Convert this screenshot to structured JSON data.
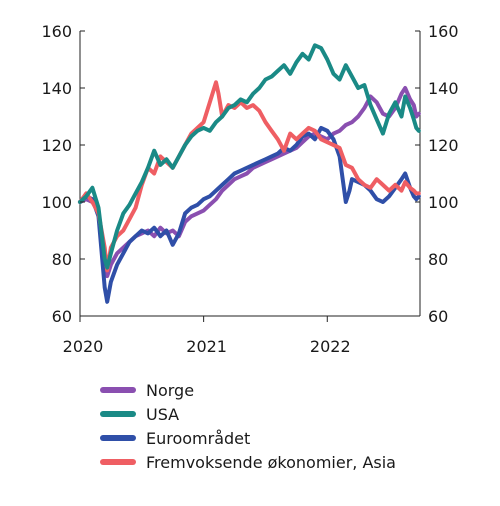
{
  "chart_data": {
    "type": "line",
    "title": "",
    "xlabel": "",
    "ylabel": "",
    "xlim": [
      2020.0,
      2022.75
    ],
    "ylim": [
      60,
      160
    ],
    "y_ticks": [
      60,
      80,
      100,
      120,
      140,
      160
    ],
    "y_tick_labels": [
      "60",
      "80",
      "100",
      "120",
      "140",
      "160"
    ],
    "x_ticks": [
      2020,
      2021,
      2022
    ],
    "x_tick_labels": [
      "2020",
      "2021",
      "2022"
    ],
    "grid": false,
    "legend_position": "bottom",
    "series": [
      {
        "name": "Norge",
        "color": "#8a4fb0",
        "points": [
          [
            2020.0,
            100
          ],
          [
            2020.05,
            101
          ],
          [
            2020.1,
            100
          ],
          [
            2020.15,
            97
          ],
          [
            2020.2,
            78
          ],
          [
            2020.22,
            74
          ],
          [
            2020.25,
            78
          ],
          [
            2020.3,
            82
          ],
          [
            2020.35,
            84
          ],
          [
            2020.4,
            86
          ],
          [
            2020.45,
            88
          ],
          [
            2020.5,
            89
          ],
          [
            2020.55,
            90
          ],
          [
            2020.6,
            88
          ],
          [
            2020.65,
            91
          ],
          [
            2020.7,
            89
          ],
          [
            2020.75,
            90
          ],
          [
            2020.8,
            88
          ],
          [
            2020.85,
            93
          ],
          [
            2020.9,
            95
          ],
          [
            2020.95,
            96
          ],
          [
            2021.0,
            97
          ],
          [
            2021.05,
            99
          ],
          [
            2021.1,
            101
          ],
          [
            2021.15,
            104
          ],
          [
            2021.2,
            106
          ],
          [
            2021.25,
            108
          ],
          [
            2021.3,
            109
          ],
          [
            2021.35,
            110
          ],
          [
            2021.4,
            112
          ],
          [
            2021.45,
            113
          ],
          [
            2021.5,
            114
          ],
          [
            2021.55,
            115
          ],
          [
            2021.6,
            116
          ],
          [
            2021.65,
            117
          ],
          [
            2021.7,
            118
          ],
          [
            2021.75,
            119
          ],
          [
            2021.8,
            121
          ],
          [
            2021.85,
            123
          ],
          [
            2021.9,
            124
          ],
          [
            2021.95,
            123
          ],
          [
            2022.0,
            122
          ],
          [
            2022.05,
            124
          ],
          [
            2022.1,
            125
          ],
          [
            2022.15,
            127
          ],
          [
            2022.2,
            128
          ],
          [
            2022.25,
            130
          ],
          [
            2022.3,
            133
          ],
          [
            2022.35,
            137
          ],
          [
            2022.4,
            135
          ],
          [
            2022.45,
            131
          ],
          [
            2022.5,
            130
          ],
          [
            2022.55,
            133
          ],
          [
            2022.6,
            138
          ],
          [
            2022.63,
            140
          ],
          [
            2022.67,
            136
          ],
          [
            2022.7,
            134
          ],
          [
            2022.72,
            130
          ],
          [
            2022.74,
            131
          ]
        ]
      },
      {
        "name": "USA",
        "color": "#1a8a86",
        "points": [
          [
            2020.0,
            100
          ],
          [
            2020.05,
            102
          ],
          [
            2020.1,
            105
          ],
          [
            2020.15,
            98
          ],
          [
            2020.2,
            80
          ],
          [
            2020.22,
            77
          ],
          [
            2020.25,
            82
          ],
          [
            2020.3,
            90
          ],
          [
            2020.35,
            96
          ],
          [
            2020.4,
            99
          ],
          [
            2020.45,
            103
          ],
          [
            2020.5,
            107
          ],
          [
            2020.55,
            112
          ],
          [
            2020.6,
            118
          ],
          [
            2020.65,
            113
          ],
          [
            2020.7,
            115
          ],
          [
            2020.75,
            112
          ],
          [
            2020.8,
            116
          ],
          [
            2020.85,
            120
          ],
          [
            2020.9,
            123
          ],
          [
            2020.95,
            125
          ],
          [
            2021.0,
            126
          ],
          [
            2021.05,
            125
          ],
          [
            2021.1,
            128
          ],
          [
            2021.15,
            130
          ],
          [
            2021.2,
            133
          ],
          [
            2021.25,
            134
          ],
          [
            2021.3,
            136
          ],
          [
            2021.35,
            135
          ],
          [
            2021.4,
            138
          ],
          [
            2021.45,
            140
          ],
          [
            2021.5,
            143
          ],
          [
            2021.55,
            144
          ],
          [
            2021.6,
            146
          ],
          [
            2021.65,
            148
          ],
          [
            2021.7,
            145
          ],
          [
            2021.75,
            149
          ],
          [
            2021.8,
            152
          ],
          [
            2021.85,
            150
          ],
          [
            2021.9,
            155
          ],
          [
            2021.95,
            154
          ],
          [
            2022.0,
            150
          ],
          [
            2022.05,
            145
          ],
          [
            2022.1,
            143
          ],
          [
            2022.15,
            148
          ],
          [
            2022.2,
            144
          ],
          [
            2022.25,
            140
          ],
          [
            2022.3,
            141
          ],
          [
            2022.35,
            134
          ],
          [
            2022.4,
            129
          ],
          [
            2022.45,
            124
          ],
          [
            2022.5,
            131
          ],
          [
            2022.55,
            135
          ],
          [
            2022.6,
            130
          ],
          [
            2022.63,
            137
          ],
          [
            2022.67,
            133
          ],
          [
            2022.7,
            129
          ],
          [
            2022.72,
            126
          ],
          [
            2022.74,
            125
          ]
        ]
      },
      {
        "name": "Euroområdet",
        "color": "#2f4fa8",
        "points": [
          [
            2020.0,
            100
          ],
          [
            2020.05,
            102
          ],
          [
            2020.1,
            101
          ],
          [
            2020.15,
            95
          ],
          [
            2020.2,
            70
          ],
          [
            2020.22,
            65
          ],
          [
            2020.25,
            72
          ],
          [
            2020.3,
            78
          ],
          [
            2020.35,
            82
          ],
          [
            2020.4,
            86
          ],
          [
            2020.45,
            88
          ],
          [
            2020.5,
            90
          ],
          [
            2020.55,
            89
          ],
          [
            2020.6,
            91
          ],
          [
            2020.65,
            88
          ],
          [
            2020.7,
            90
          ],
          [
            2020.75,
            85
          ],
          [
            2020.8,
            89
          ],
          [
            2020.85,
            96
          ],
          [
            2020.9,
            98
          ],
          [
            2020.95,
            99
          ],
          [
            2021.0,
            101
          ],
          [
            2021.05,
            102
          ],
          [
            2021.1,
            104
          ],
          [
            2021.15,
            106
          ],
          [
            2021.2,
            108
          ],
          [
            2021.25,
            110
          ],
          [
            2021.3,
            111
          ],
          [
            2021.35,
            112
          ],
          [
            2021.4,
            113
          ],
          [
            2021.45,
            114
          ],
          [
            2021.5,
            115
          ],
          [
            2021.55,
            116
          ],
          [
            2021.6,
            117
          ],
          [
            2021.65,
            119
          ],
          [
            2021.7,
            118
          ],
          [
            2021.75,
            120
          ],
          [
            2021.8,
            123
          ],
          [
            2021.85,
            124
          ],
          [
            2021.9,
            122
          ],
          [
            2021.95,
            126
          ],
          [
            2022.0,
            125
          ],
          [
            2022.05,
            122
          ],
          [
            2022.1,
            116
          ],
          [
            2022.15,
            100
          ],
          [
            2022.18,
            104
          ],
          [
            2022.2,
            108
          ],
          [
            2022.25,
            107
          ],
          [
            2022.3,
            106
          ],
          [
            2022.35,
            104
          ],
          [
            2022.4,
            101
          ],
          [
            2022.45,
            100
          ],
          [
            2022.5,
            102
          ],
          [
            2022.55,
            105
          ],
          [
            2022.6,
            108
          ],
          [
            2022.63,
            110
          ],
          [
            2022.67,
            105
          ],
          [
            2022.7,
            102
          ],
          [
            2022.72,
            101
          ],
          [
            2022.74,
            102
          ]
        ]
      },
      {
        "name": "Fremvoksende økonomier, Asia",
        "color": "#ef5e63",
        "points": [
          [
            2020.0,
            100
          ],
          [
            2020.05,
            103
          ],
          [
            2020.1,
            100
          ],
          [
            2020.15,
            96
          ],
          [
            2020.2,
            84
          ],
          [
            2020.22,
            76
          ],
          [
            2020.25,
            84
          ],
          [
            2020.3,
            88
          ],
          [
            2020.35,
            90
          ],
          [
            2020.4,
            94
          ],
          [
            2020.45,
            98
          ],
          [
            2020.5,
            106
          ],
          [
            2020.55,
            112
          ],
          [
            2020.6,
            110
          ],
          [
            2020.65,
            116
          ],
          [
            2020.7,
            114
          ],
          [
            2020.75,
            112
          ],
          [
            2020.8,
            116
          ],
          [
            2020.85,
            120
          ],
          [
            2020.9,
            124
          ],
          [
            2020.95,
            126
          ],
          [
            2021.0,
            128
          ],
          [
            2021.05,
            135
          ],
          [
            2021.1,
            142
          ],
          [
            2021.12,
            138
          ],
          [
            2021.15,
            130
          ],
          [
            2021.2,
            134
          ],
          [
            2021.25,
            133
          ],
          [
            2021.3,
            135
          ],
          [
            2021.35,
            133
          ],
          [
            2021.4,
            134
          ],
          [
            2021.45,
            132
          ],
          [
            2021.5,
            128
          ],
          [
            2021.55,
            125
          ],
          [
            2021.6,
            122
          ],
          [
            2021.65,
            118
          ],
          [
            2021.7,
            124
          ],
          [
            2021.75,
            122
          ],
          [
            2021.8,
            124
          ],
          [
            2021.85,
            126
          ],
          [
            2021.9,
            125
          ],
          [
            2021.95,
            122
          ],
          [
            2022.0,
            121
          ],
          [
            2022.05,
            120
          ],
          [
            2022.1,
            119
          ],
          [
            2022.15,
            113
          ],
          [
            2022.2,
            112
          ],
          [
            2022.25,
            108
          ],
          [
            2022.3,
            106
          ],
          [
            2022.35,
            105
          ],
          [
            2022.4,
            108
          ],
          [
            2022.45,
            106
          ],
          [
            2022.5,
            104
          ],
          [
            2022.55,
            106
          ],
          [
            2022.6,
            104
          ],
          [
            2022.63,
            107
          ],
          [
            2022.67,
            105
          ],
          [
            2022.7,
            104
          ],
          [
            2022.72,
            103
          ],
          [
            2022.74,
            103
          ]
        ]
      }
    ]
  }
}
